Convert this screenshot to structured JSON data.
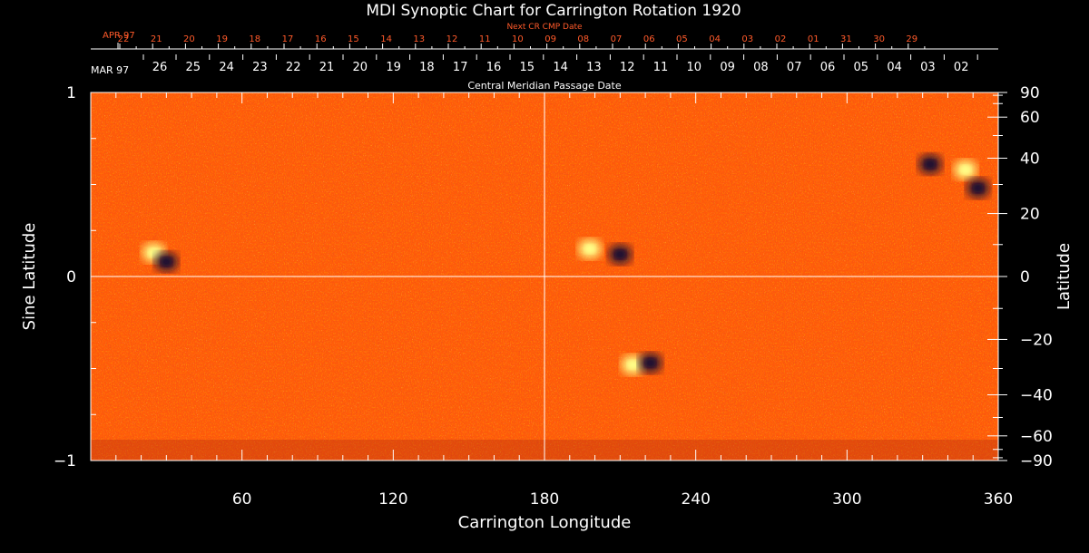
{
  "chart_data": {
    "type": "heatmap",
    "title": "MDI Synoptic Chart for Carrington Rotation 1920",
    "xlabel": "Carrington Longitude",
    "ylabel_left": "Sine Latitude",
    "ylabel_right": "Latitude",
    "xlim": [
      0,
      360
    ],
    "ylim": [
      -1,
      1
    ],
    "x_ticks": [
      60,
      120,
      180,
      240,
      300,
      360
    ],
    "y_ticks_left": [
      {
        "value": 1,
        "label": "1"
      },
      {
        "value": 0,
        "label": "0"
      },
      {
        "value": -1,
        "label": "−1"
      }
    ],
    "y_ticks_right": [
      {
        "deg": 90,
        "label": "90"
      },
      {
        "deg": 60,
        "label": "60"
      },
      {
        "deg": 40,
        "label": "40"
      },
      {
        "deg": 20,
        "label": "20"
      },
      {
        "deg": 0,
        "label": "0"
      },
      {
        "deg": -20,
        "label": "−20"
      },
      {
        "deg": -40,
        "label": "−40"
      },
      {
        "deg": -60,
        "label": "−60"
      },
      {
        "deg": -90,
        "label": "−90"
      }
    ],
    "top_axis_red": {
      "title": "Next CR CMP Date",
      "month_label": "APR 97",
      "dates": [
        "22",
        "21",
        "20",
        "19",
        "18",
        "17",
        "16",
        "15",
        "14",
        "13",
        "12",
        "11",
        "10",
        "09",
        "08",
        "07",
        "06",
        "05",
        "04",
        "03",
        "02",
        "01",
        "31",
        "30",
        "29"
      ]
    },
    "top_axis_white": {
      "title": "Central Meridian Passage Date",
      "month_label": "MAR 97",
      "dates": [
        "26",
        "25",
        "24",
        "23",
        "22",
        "21",
        "20",
        "19",
        "18",
        "17",
        "16",
        "15",
        "14",
        "13",
        "12",
        "11",
        "10",
        "09",
        "08",
        "07",
        "06",
        "05",
        "04",
        "03",
        "02"
      ]
    },
    "reference_lines": {
      "longitude": 180,
      "sine_latitude": 0
    },
    "colormap": {
      "background": "#ff5500",
      "positive": "#ffff88",
      "negative": "#1a1030"
    },
    "active_regions": [
      {
        "lon": 198,
        "sinlat": 0.15,
        "polarity": "positive"
      },
      {
        "lon": 210,
        "sinlat": 0.12,
        "polarity": "negative"
      },
      {
        "lon": 215,
        "sinlat": -0.48,
        "polarity": "positive"
      },
      {
        "lon": 222,
        "sinlat": -0.47,
        "polarity": "negative"
      },
      {
        "lon": 333,
        "sinlat": 0.61,
        "polarity": "negative"
      },
      {
        "lon": 347,
        "sinlat": 0.58,
        "polarity": "positive"
      },
      {
        "lon": 352,
        "sinlat": 0.48,
        "polarity": "negative"
      },
      {
        "lon": 25,
        "sinlat": 0.13,
        "polarity": "positive"
      },
      {
        "lon": 30,
        "sinlat": 0.08,
        "polarity": "negative"
      }
    ]
  }
}
